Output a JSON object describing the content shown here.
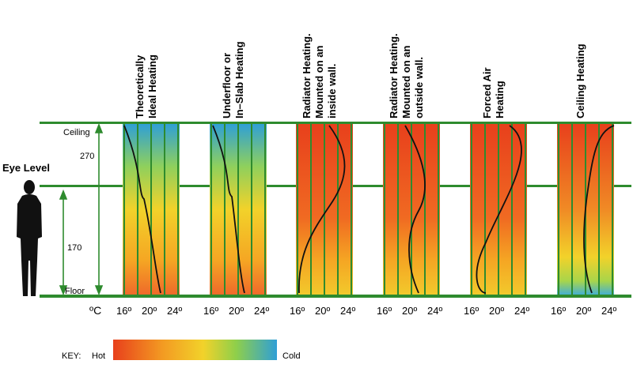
{
  "labels": {
    "ceiling": "Ceiling",
    "floor": "Floor",
    "eye_level": "Eye Level",
    "height_upper": "270",
    "height_lower": "170",
    "unit": "ºC"
  },
  "key": {
    "label": "KEY:",
    "hot": "Hot",
    "cold": "Cold"
  },
  "panels": [
    {
      "title": [
        "Theoretically",
        "Ideal Heating"
      ],
      "ticks": [
        "16º",
        "20º",
        "24º"
      ],
      "gradient": "ideal"
    },
    {
      "title": [
        "Underfloor or",
        "In–Slab Heating"
      ],
      "ticks": [
        "16º",
        "20º",
        "24º"
      ],
      "gradient": "ideal"
    },
    {
      "title": [
        "Radiator Heating.",
        "Mounted on an",
        "inside wall."
      ],
      "ticks": [
        "16º",
        "20º",
        "24º"
      ],
      "gradient": "warm"
    },
    {
      "title": [
        "Radiator Heating.",
        "Mounted on an",
        "outside wall."
      ],
      "ticks": [
        "16º",
        "20º",
        "24º"
      ],
      "gradient": "warm"
    },
    {
      "title": [
        "Forced Air",
        "Heating"
      ],
      "ticks": [
        "16º",
        "20º",
        "24º"
      ],
      "gradient": "warm"
    },
    {
      "title": [
        "Ceiling Heating"
      ],
      "ticks": [
        "16º",
        "20º",
        "24º"
      ],
      "gradient": "ceiling"
    }
  ],
  "colors": {
    "grid_green": "#2e8b2e",
    "hot": "#e8401c",
    "mid": "#f5c518",
    "cool": "#8fcf4a",
    "cold": "#3aa5d8"
  }
}
